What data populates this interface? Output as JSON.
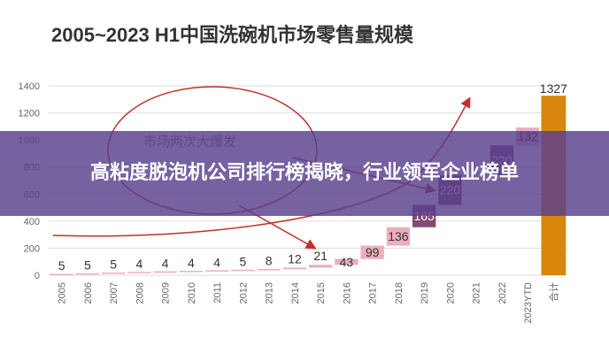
{
  "chart_data": {
    "type": "bar",
    "title": "2005~2023 H1中国洗碗机市场零售量规模",
    "categories": [
      "2005",
      "2006",
      "2007",
      "2008",
      "2009",
      "2010",
      "2011",
      "2012",
      "2013",
      "2014",
      "2015",
      "2016",
      "2017",
      "2018",
      "2019",
      "2020",
      "2021",
      "2022",
      "2023YTD",
      "合计"
    ],
    "values": [
      5,
      5,
      5,
      4,
      4,
      4,
      4,
      5,
      8,
      12,
      21,
      43,
      99,
      136,
      165,
      220,
      null,
      220,
      132,
      1327
    ],
    "data_labels": [
      "5",
      "5",
      "5",
      "4",
      "4",
      "4",
      "4",
      "5",
      "8",
      "12",
      "21",
      "43",
      "99",
      "136",
      "165",
      "220",
      "",
      "220",
      "132",
      "1327"
    ],
    "ylim": [
      0,
      1400
    ],
    "yticks": [
      0,
      200,
      400,
      600,
      800,
      1000,
      1200,
      1400
    ],
    "grid": true,
    "annotations": [
      "市场两次大爆发"
    ],
    "colors": {
      "step_bar": "#e8a0b0",
      "dark_bar": "#6e2a5a",
      "total_bar": "#d9860d",
      "arrow": "#c0302a",
      "grid": "#dddddd"
    }
  },
  "banner": {
    "text": "高粘度脱泡机公司排行榜揭晓，行业领军企业榜单"
  }
}
